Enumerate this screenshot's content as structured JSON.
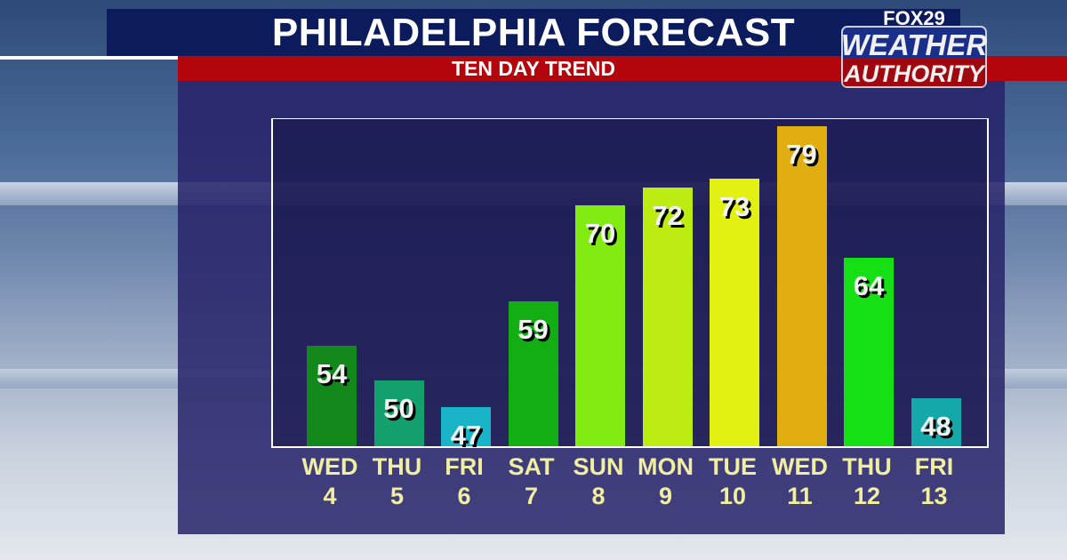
{
  "header": {
    "title": "PHILADELPHIA FORECAST",
    "subtitle": "TEN DAY TREND"
  },
  "logo": {
    "top": "FOX29",
    "line1": "WEATHER",
    "line2": "AUTHORITY"
  },
  "chart_data": {
    "type": "bar",
    "title": "PHILADELPHIA FORECAST",
    "subtitle": "TEN DAY TREND",
    "categories": [
      [
        "WED",
        "4"
      ],
      [
        "THU",
        "5"
      ],
      [
        "FRI",
        "6"
      ],
      [
        "SAT",
        "7"
      ],
      [
        "SUN",
        "8"
      ],
      [
        "MON",
        "9"
      ],
      [
        "TUE",
        "10"
      ],
      [
        "WED",
        "11"
      ],
      [
        "THU",
        "12"
      ],
      [
        "FRI",
        "13"
      ]
    ],
    "values": [
      54,
      50,
      47,
      59,
      70,
      72,
      73,
      79,
      64,
      48
    ],
    "colors": [
      "#12891a",
      "#13a06c",
      "#1ab4c8",
      "#12ae14",
      "#82ec12",
      "#bcec12",
      "#e2f012",
      "#e0ae10",
      "#14e014",
      "#14a8aa"
    ],
    "ylim": [
      42.5,
      80
    ],
    "grid": false,
    "legend": "none"
  }
}
